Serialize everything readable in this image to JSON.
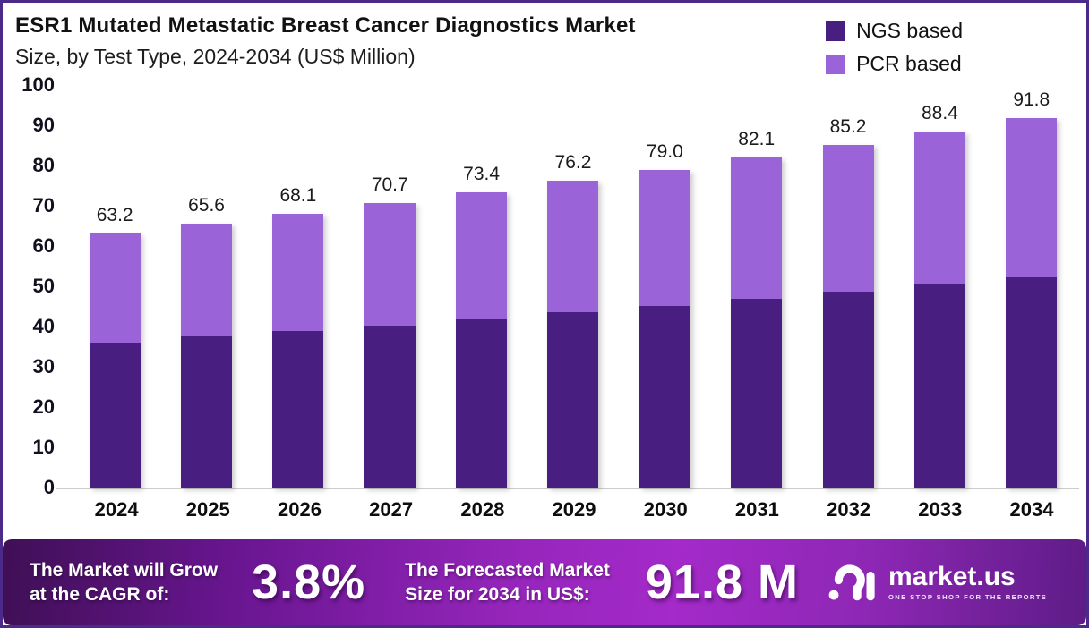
{
  "header": {
    "title_line1": "ESR1 Mutated Metastatic Breast Cancer Diagnostics Market",
    "title_line2": "Size, by Test Type, 2024-2034 (US$ Million)"
  },
  "legend": {
    "items": [
      {
        "label": "NGS based",
        "color": "#481E81"
      },
      {
        "label": "PCR based",
        "color": "#9A64D8"
      }
    ]
  },
  "chart_data": {
    "type": "bar",
    "stacked": true,
    "title": "ESR1 Mutated Metastatic Breast Cancer Diagnostics Market Size, by Test Type, 2024-2034 (US$ Million)",
    "categories": [
      "2024",
      "2025",
      "2026",
      "2027",
      "2028",
      "2029",
      "2030",
      "2031",
      "2032",
      "2033",
      "2034"
    ],
    "series": [
      {
        "name": "NGS based",
        "color": "#481E81",
        "values": [
          36.1,
          37.5,
          38.9,
          40.3,
          41.8,
          43.5,
          45.1,
          46.8,
          48.6,
          50.4,
          52.3
        ]
      },
      {
        "name": "PCR based",
        "color": "#9A64D8",
        "values": [
          27.1,
          28.1,
          29.2,
          30.4,
          31.6,
          32.7,
          33.9,
          35.3,
          36.6,
          38.0,
          39.5
        ]
      }
    ],
    "totals": [
      63.2,
      65.6,
      68.1,
      70.7,
      73.4,
      76.2,
      79.0,
      82.1,
      85.2,
      88.4,
      91.8
    ],
    "totals_labels": [
      "63.2",
      "65.6",
      "68.1",
      "70.7",
      "73.4",
      "76.2",
      "79.0",
      "82.1",
      "85.2",
      "88.4",
      "91.8"
    ],
    "xlabel": "",
    "ylabel": "",
    "ylim": [
      0,
      100
    ],
    "yticks": [
      0,
      10,
      20,
      30,
      40,
      50,
      60,
      70,
      80,
      90,
      100
    ],
    "grid": false,
    "legend_position": "top-right"
  },
  "banner": {
    "cagr_label_line1": "The Market will Grow",
    "cagr_label_line2": "at the CAGR of:",
    "cagr_value": "3.8%",
    "forecast_label_line1": "The Forecasted Market",
    "forecast_label_line2": "Size for 2034 in US$:",
    "forecast_value": "91.8 M",
    "brand_name": "market.us",
    "brand_tagline": "ONE STOP SHOP FOR THE REPORTS"
  },
  "colors": {
    "page_border": "#4B2A8A",
    "axis_line": "#cccccc",
    "banner_gradient_left": "#3F0F55",
    "banner_gradient_mid": "#A42AC9",
    "banner_gradient_right": "#5E1C86"
  }
}
